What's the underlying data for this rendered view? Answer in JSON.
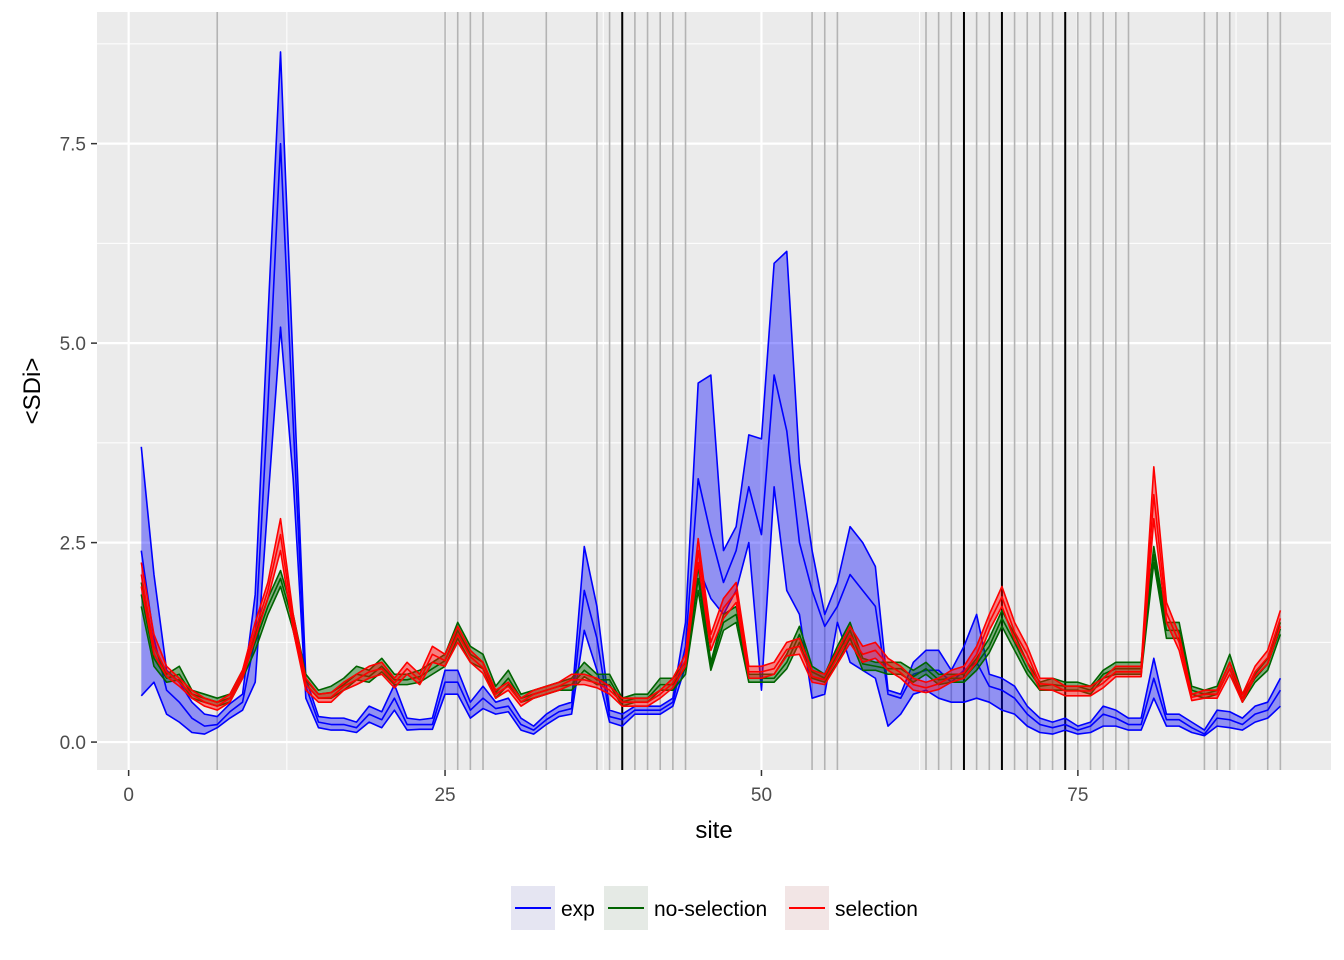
{
  "chart_data": {
    "type": "line",
    "xlabel": "site",
    "ylabel": "<SDi>",
    "xlim": [
      -2.5,
      95.0
    ],
    "ylim": [
      -0.35,
      9.15
    ],
    "x_ticks": [
      0,
      25,
      50,
      75
    ],
    "y_ticks": [
      0.0,
      2.5,
      5.0,
      7.5
    ],
    "x_tick_labels": [
      "0",
      "25",
      "50",
      "75"
    ],
    "y_tick_labels": [
      "0.0",
      "2.5",
      "5.0",
      "7.5"
    ],
    "grid": true,
    "legend_position": "bottom",
    "colors": {
      "panel": "#ebebeb",
      "grid": "#ffffff",
      "exp": "#0000ff",
      "no-selection": "#006400",
      "selection": "#ff0000",
      "vline_gray": "#b3b3b3",
      "vline_black": "#000000"
    },
    "vlines_gray": [
      7,
      25,
      26,
      27,
      28,
      33,
      37,
      38,
      40,
      41,
      42,
      43,
      44,
      54,
      55,
      56,
      63,
      64,
      65,
      67,
      68,
      70,
      71,
      72,
      73,
      75,
      76,
      77,
      78,
      79,
      85,
      86,
      87,
      90,
      91
    ],
    "vlines_black": [
      39,
      66,
      69,
      74
    ],
    "series": [
      {
        "name": "exp",
        "color": "#0000ff",
        "fill": "#0000ff",
        "fill_opacity": 0.38,
        "x": [
          1,
          2,
          3,
          4,
          5,
          6,
          7,
          8,
          9,
          10,
          11,
          12,
          13,
          14,
          15,
          16,
          17,
          18,
          19,
          20,
          21,
          22,
          23,
          24,
          25,
          26,
          27,
          28,
          29,
          30,
          31,
          32,
          33,
          34,
          35,
          36,
          37,
          38,
          39,
          40,
          41,
          42,
          43,
          44,
          45,
          46,
          47,
          48,
          49,
          50,
          51,
          52,
          53,
          54,
          55,
          56,
          57,
          58,
          59,
          60,
          61,
          62,
          63,
          64,
          65,
          66,
          67,
          68,
          69,
          70,
          71,
          72,
          73,
          74,
          75,
          76,
          77,
          78,
          79,
          80,
          81,
          82,
          83,
          84,
          85,
          86,
          87,
          88,
          89,
          90,
          91
        ],
        "upper": [
          3.7,
          2.1,
          0.9,
          0.75,
          0.5,
          0.35,
          0.32,
          0.48,
          0.6,
          1.85,
          5.3,
          8.65,
          4.7,
          0.8,
          0.32,
          0.3,
          0.3,
          0.25,
          0.45,
          0.38,
          0.72,
          0.3,
          0.28,
          0.3,
          0.9,
          0.9,
          0.5,
          0.7,
          0.5,
          0.55,
          0.3,
          0.2,
          0.35,
          0.45,
          0.5,
          2.45,
          1.7,
          0.4,
          0.35,
          0.45,
          0.45,
          0.45,
          0.55,
          1.5,
          4.5,
          4.6,
          2.4,
          2.7,
          3.85,
          3.8,
          6.0,
          6.15,
          3.5,
          2.4,
          1.6,
          2.0,
          2.7,
          2.5,
          2.2,
          0.65,
          0.6,
          1.0,
          1.15,
          1.15,
          0.9,
          1.2,
          1.6,
          0.85,
          0.8,
          0.7,
          0.45,
          0.3,
          0.25,
          0.3,
          0.2,
          0.25,
          0.45,
          0.4,
          0.3,
          0.3,
          1.05,
          0.35,
          0.35,
          0.25,
          0.15,
          0.4,
          0.38,
          0.3,
          0.45,
          0.5,
          0.8
        ],
        "mid": [
          2.4,
          1.3,
          0.65,
          0.5,
          0.3,
          0.2,
          0.22,
          0.38,
          0.5,
          1.3,
          4.2,
          7.5,
          4.0,
          0.7,
          0.25,
          0.22,
          0.22,
          0.18,
          0.35,
          0.28,
          0.55,
          0.22,
          0.22,
          0.22,
          0.75,
          0.75,
          0.4,
          0.55,
          0.42,
          0.45,
          0.22,
          0.15,
          0.28,
          0.38,
          0.42,
          1.9,
          1.3,
          0.32,
          0.28,
          0.4,
          0.4,
          0.4,
          0.5,
          1.2,
          3.3,
          2.6,
          2.0,
          2.4,
          3.2,
          2.6,
          4.6,
          3.9,
          2.5,
          1.9,
          1.45,
          1.7,
          2.1,
          1.9,
          1.7,
          0.6,
          0.55,
          0.85,
          0.9,
          0.9,
          0.75,
          0.9,
          1.0,
          0.7,
          0.65,
          0.55,
          0.35,
          0.22,
          0.18,
          0.22,
          0.15,
          0.2,
          0.35,
          0.3,
          0.22,
          0.22,
          0.8,
          0.28,
          0.28,
          0.18,
          0.1,
          0.3,
          0.28,
          0.22,
          0.35,
          0.4,
          0.65
        ],
        "lower": [
          0.58,
          0.75,
          0.35,
          0.25,
          0.12,
          0.1,
          0.18,
          0.3,
          0.4,
          0.75,
          3.0,
          5.2,
          3.3,
          0.55,
          0.18,
          0.15,
          0.15,
          0.12,
          0.25,
          0.18,
          0.4,
          0.15,
          0.16,
          0.16,
          0.6,
          0.6,
          0.3,
          0.42,
          0.35,
          0.38,
          0.15,
          0.1,
          0.22,
          0.32,
          0.35,
          1.4,
          0.9,
          0.25,
          0.2,
          0.35,
          0.35,
          0.35,
          0.45,
          0.95,
          2.2,
          1.8,
          1.6,
          1.9,
          2.5,
          0.65,
          3.2,
          1.9,
          1.6,
          0.55,
          0.6,
          1.5,
          1.0,
          0.9,
          0.8,
          0.2,
          0.35,
          0.6,
          0.65,
          0.55,
          0.5,
          0.5,
          0.55,
          0.5,
          0.4,
          0.35,
          0.2,
          0.12,
          0.1,
          0.15,
          0.1,
          0.12,
          0.2,
          0.2,
          0.15,
          0.15,
          0.55,
          0.2,
          0.2,
          0.12,
          0.08,
          0.2,
          0.18,
          0.15,
          0.25,
          0.3,
          0.45
        ]
      },
      {
        "name": "no-selection",
        "color": "#006400",
        "fill": "#006400",
        "fill_opacity": 0.45,
        "x": [
          1,
          2,
          3,
          4,
          5,
          6,
          7,
          8,
          9,
          10,
          11,
          12,
          13,
          14,
          15,
          16,
          17,
          18,
          19,
          20,
          21,
          22,
          23,
          24,
          25,
          26,
          27,
          28,
          29,
          30,
          31,
          32,
          33,
          34,
          35,
          36,
          37,
          38,
          39,
          40,
          41,
          42,
          43,
          44,
          45,
          46,
          47,
          48,
          49,
          50,
          51,
          52,
          53,
          54,
          55,
          56,
          57,
          58,
          59,
          60,
          61,
          62,
          63,
          64,
          65,
          66,
          67,
          68,
          69,
          70,
          71,
          72,
          73,
          74,
          75,
          76,
          77,
          78,
          79,
          80,
          81,
          82,
          83,
          84,
          85,
          86,
          87,
          88,
          89,
          90,
          91
        ],
        "upper": [
          2.0,
          1.2,
          0.85,
          0.95,
          0.65,
          0.6,
          0.55,
          0.6,
          0.9,
          1.35,
          1.8,
          2.15,
          1.6,
          0.85,
          0.65,
          0.7,
          0.8,
          0.95,
          0.9,
          1.05,
          0.85,
          0.85,
          0.9,
          1.0,
          1.1,
          1.5,
          1.2,
          1.1,
          0.7,
          0.9,
          0.6,
          0.65,
          0.7,
          0.75,
          0.8,
          1.0,
          0.85,
          0.85,
          0.55,
          0.6,
          0.6,
          0.8,
          0.8,
          1.0,
          2.2,
          1.0,
          1.6,
          1.7,
          0.85,
          0.85,
          0.85,
          1.1,
          1.45,
          0.95,
          0.85,
          1.2,
          1.5,
          1.05,
          1.0,
          1.0,
          1.0,
          0.9,
          1.0,
          0.85,
          0.85,
          0.85,
          1.05,
          1.3,
          1.65,
          1.35,
          1.0,
          0.75,
          0.8,
          0.75,
          0.75,
          0.7,
          0.9,
          1.0,
          1.0,
          1.0,
          2.45,
          1.5,
          1.5,
          0.7,
          0.65,
          0.7,
          1.1,
          0.6,
          0.85,
          1.05,
          1.5
        ],
        "mid": [
          1.85,
          1.05,
          0.8,
          0.85,
          0.6,
          0.55,
          0.5,
          0.55,
          0.85,
          1.25,
          1.7,
          2.05,
          1.5,
          0.78,
          0.6,
          0.62,
          0.72,
          0.85,
          0.82,
          0.95,
          0.78,
          0.78,
          0.82,
          0.92,
          1.02,
          1.4,
          1.1,
          1.0,
          0.62,
          0.8,
          0.55,
          0.6,
          0.65,
          0.7,
          0.72,
          0.9,
          0.78,
          0.78,
          0.5,
          0.55,
          0.55,
          0.72,
          0.72,
          0.92,
          2.05,
          0.95,
          1.5,
          1.6,
          0.8,
          0.8,
          0.8,
          1.0,
          1.35,
          0.88,
          0.8,
          1.1,
          1.4,
          0.98,
          0.95,
          0.92,
          0.92,
          0.82,
          0.92,
          0.78,
          0.8,
          0.8,
          0.98,
          1.2,
          1.55,
          1.25,
          0.92,
          0.7,
          0.72,
          0.7,
          0.7,
          0.65,
          0.85,
          0.92,
          0.92,
          0.92,
          2.35,
          1.4,
          1.4,
          0.65,
          0.6,
          0.65,
          1.0,
          0.55,
          0.8,
          0.98,
          1.42
        ],
        "lower": [
          1.7,
          0.95,
          0.75,
          0.78,
          0.55,
          0.5,
          0.45,
          0.5,
          0.8,
          1.15,
          1.6,
          1.95,
          1.4,
          0.72,
          0.55,
          0.55,
          0.65,
          0.78,
          0.75,
          0.88,
          0.72,
          0.72,
          0.75,
          0.85,
          0.95,
          1.3,
          1.0,
          0.92,
          0.55,
          0.72,
          0.5,
          0.55,
          0.6,
          0.65,
          0.65,
          0.82,
          0.72,
          0.72,
          0.45,
          0.5,
          0.5,
          0.65,
          0.65,
          0.85,
          1.9,
          0.9,
          1.4,
          1.5,
          0.75,
          0.75,
          0.75,
          0.92,
          1.25,
          0.8,
          0.75,
          1.0,
          1.3,
          0.9,
          0.9,
          0.85,
          0.85,
          0.75,
          0.85,
          0.72,
          0.75,
          0.75,
          0.9,
          1.12,
          1.45,
          1.15,
          0.85,
          0.65,
          0.65,
          0.65,
          0.65,
          0.6,
          0.8,
          0.85,
          0.85,
          0.85,
          2.25,
          1.3,
          1.3,
          0.6,
          0.55,
          0.6,
          0.92,
          0.5,
          0.75,
          0.9,
          1.35
        ]
      },
      {
        "name": "selection",
        "color": "#ff0000",
        "fill": "#ff0000",
        "fill_opacity": 0.45,
        "x": [
          1,
          2,
          3,
          4,
          5,
          6,
          7,
          8,
          9,
          10,
          11,
          12,
          13,
          14,
          15,
          16,
          17,
          18,
          19,
          20,
          21,
          22,
          23,
          24,
          25,
          26,
          27,
          28,
          29,
          30,
          31,
          32,
          33,
          34,
          35,
          36,
          37,
          38,
          39,
          40,
          41,
          42,
          43,
          44,
          45,
          46,
          47,
          48,
          49,
          50,
          51,
          52,
          53,
          54,
          55,
          56,
          57,
          58,
          59,
          60,
          61,
          62,
          63,
          64,
          65,
          66,
          67,
          68,
          69,
          70,
          71,
          72,
          73,
          74,
          75,
          76,
          77,
          78,
          79,
          80,
          81,
          82,
          83,
          84,
          85,
          86,
          87,
          88,
          89,
          90,
          91
        ],
        "upper": [
          2.25,
          1.35,
          0.95,
          0.8,
          0.65,
          0.55,
          0.5,
          0.6,
          0.9,
          1.5,
          2.0,
          2.8,
          1.6,
          0.8,
          0.6,
          0.62,
          0.75,
          0.85,
          0.95,
          1.0,
          0.8,
          1.0,
          0.85,
          1.2,
          1.1,
          1.45,
          1.15,
          1.0,
          0.65,
          0.75,
          0.55,
          0.65,
          0.7,
          0.75,
          0.85,
          0.85,
          0.8,
          0.7,
          0.55,
          0.55,
          0.55,
          0.65,
          0.8,
          1.1,
          2.55,
          1.35,
          1.8,
          2.0,
          0.95,
          0.95,
          1.0,
          1.25,
          1.3,
          0.9,
          0.85,
          1.15,
          1.45,
          1.2,
          1.25,
          1.05,
          0.95,
          0.8,
          0.75,
          0.8,
          0.9,
          0.95,
          1.2,
          1.6,
          1.95,
          1.5,
          1.2,
          0.8,
          0.8,
          0.7,
          0.7,
          0.7,
          0.8,
          0.95,
          0.95,
          0.95,
          3.45,
          1.75,
          1.35,
          0.6,
          0.65,
          0.65,
          1.0,
          0.6,
          0.95,
          1.15,
          1.65
        ],
        "mid": [
          2.1,
          1.2,
          0.88,
          0.75,
          0.6,
          0.5,
          0.45,
          0.55,
          0.85,
          1.4,
          1.9,
          2.6,
          1.5,
          0.72,
          0.55,
          0.56,
          0.7,
          0.78,
          0.88,
          0.92,
          0.74,
          0.92,
          0.78,
          1.1,
          1.02,
          1.35,
          1.07,
          0.93,
          0.6,
          0.7,
          0.5,
          0.6,
          0.65,
          0.7,
          0.78,
          0.78,
          0.74,
          0.65,
          0.5,
          0.5,
          0.5,
          0.6,
          0.74,
          1.02,
          2.4,
          1.25,
          1.68,
          1.88,
          0.88,
          0.88,
          0.92,
          1.16,
          1.2,
          0.82,
          0.78,
          1.06,
          1.34,
          1.1,
          1.15,
          0.97,
          0.87,
          0.72,
          0.68,
          0.73,
          0.82,
          0.87,
          1.1,
          1.5,
          1.82,
          1.38,
          1.1,
          0.73,
          0.72,
          0.64,
          0.64,
          0.64,
          0.74,
          0.88,
          0.88,
          0.88,
          3.1,
          1.62,
          1.25,
          0.56,
          0.6,
          0.6,
          0.92,
          0.55,
          0.88,
          1.06,
          1.55
        ],
        "lower": [
          1.95,
          1.1,
          0.82,
          0.7,
          0.55,
          0.45,
          0.4,
          0.5,
          0.8,
          1.3,
          1.8,
          2.4,
          1.4,
          0.65,
          0.5,
          0.5,
          0.65,
          0.72,
          0.8,
          0.85,
          0.68,
          0.85,
          0.72,
          1.0,
          0.95,
          1.25,
          1.0,
          0.86,
          0.55,
          0.65,
          0.45,
          0.55,
          0.6,
          0.65,
          0.72,
          0.72,
          0.68,
          0.6,
          0.45,
          0.45,
          0.45,
          0.55,
          0.68,
          0.95,
          2.25,
          1.15,
          1.55,
          1.75,
          0.8,
          0.8,
          0.85,
          1.08,
          1.1,
          0.75,
          0.72,
          0.98,
          1.24,
          1.0,
          1.05,
          0.9,
          0.8,
          0.65,
          0.62,
          0.66,
          0.75,
          0.8,
          1.0,
          1.4,
          1.7,
          1.28,
          1.0,
          0.66,
          0.65,
          0.58,
          0.58,
          0.58,
          0.68,
          0.82,
          0.82,
          0.82,
          2.8,
          1.5,
          1.15,
          0.52,
          0.55,
          0.55,
          0.85,
          0.5,
          0.82,
          0.98,
          1.45
        ]
      }
    ]
  }
}
